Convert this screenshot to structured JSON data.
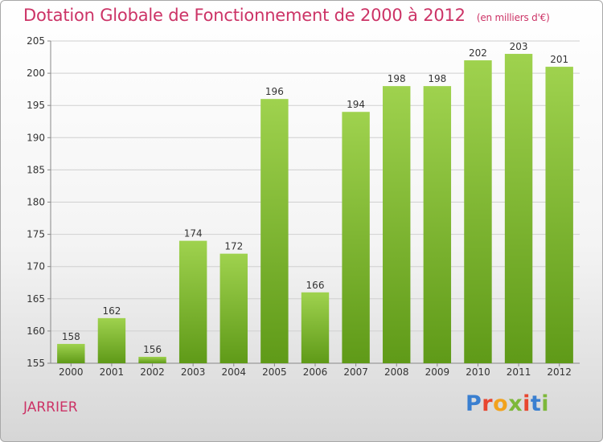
{
  "header": {
    "title": "Dotation Globale de Fonctionnement de 2000 à 2012",
    "subtitle": "(en milliers d'€)"
  },
  "footer": {
    "commune": "JARRIER",
    "logo": "Proxiti",
    "logo_colors": [
      "#3a7fd0",
      "#e8462f",
      "#f2a21d",
      "#7db83a",
      "#e8462f",
      "#3a7fd0",
      "#7db83a"
    ]
  },
  "chart_data": {
    "type": "bar",
    "categories": [
      "2000",
      "2001",
      "2002",
      "2003",
      "2004",
      "2005",
      "2006",
      "2007",
      "2008",
      "2009",
      "2010",
      "2011",
      "2012"
    ],
    "values": [
      158,
      162,
      156,
      174,
      172,
      196,
      166,
      194,
      198,
      198,
      202,
      203,
      201
    ],
    "ylim": [
      155,
      205
    ],
    "yticks": [
      155,
      160,
      165,
      170,
      175,
      180,
      185,
      190,
      195,
      200,
      205
    ],
    "grid": true,
    "bar_color_top": "#9fd24e",
    "bar_color_bottom": "#5f9a18"
  }
}
